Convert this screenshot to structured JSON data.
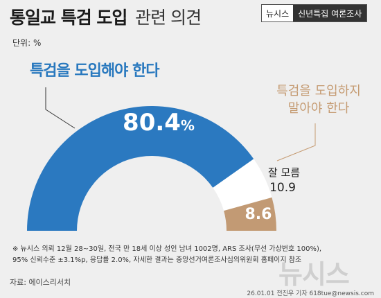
{
  "header": {
    "title_main": "통일교 특검 도입",
    "title_sub": "관련 의견",
    "brand_left": "뉴시스",
    "brand_right": "신년특집 여론조사"
  },
  "unit_label": "단위: %",
  "chart_data": {
    "type": "pie",
    "variant": "semicircle-donut",
    "slices": [
      {
        "label": "특검을 도입해야 한다",
        "value": 80.4,
        "display": "80.4%",
        "color": "#2b79c0"
      },
      {
        "label": "잘 모름",
        "value": 10.9,
        "display": "10.9",
        "color": "#ffffff"
      },
      {
        "label": "특검을 도입하지 말아야 한다",
        "value": 8.6,
        "display": "8.6",
        "color": "#c29a74"
      }
    ]
  },
  "labels": {
    "yes": "특검을 도입해야 한다",
    "no_line1": "특검을 도입하지",
    "no_line2": "말아야 한다",
    "unknown": "잘 모름"
  },
  "footnote": {
    "line1": "※ 뉴시스 의뢰 12월 28~30일, 전국 만 18세 이상 성인 남녀 1002명, ARS 조사(무선 가상번호 100%),",
    "line2": "95% 신뢰수준 ±3.1%p, 응답률 2.0%, 자세한 결과는 중앙선거여론조사심의위원회 홈페이지 참조"
  },
  "source": "자료: 에이스리서치",
  "credit": "26.01.01 전진우 기자 618tue@newsis.com",
  "watermark": "뉴시스",
  "colors": {
    "accent_blue": "#2b79c0",
    "accent_tan": "#c29a74",
    "background": "#efefef"
  }
}
